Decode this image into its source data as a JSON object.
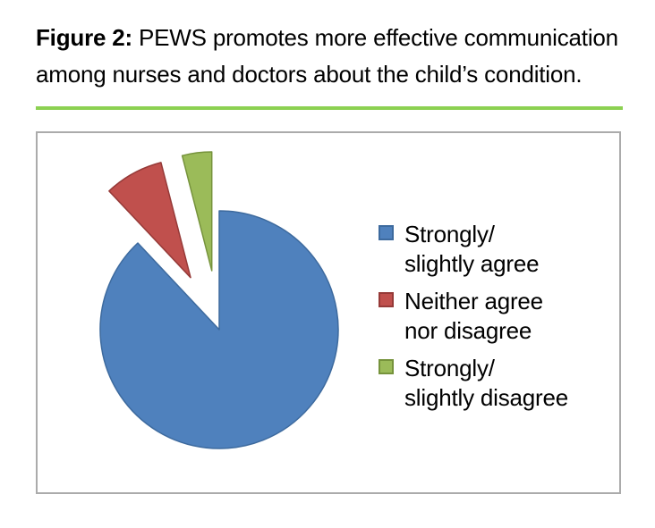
{
  "figure": {
    "caption": {
      "prefix": "Figure 2:",
      "line1_rest": " PEWS promotes more effective communication",
      "line2": "among nurses and doctors about the child’s condition."
    }
  },
  "colors": {
    "separator_green": "#8CD152",
    "frame_border": "#ABABAB",
    "background": "#FFFFFF"
  },
  "chart_data": {
    "type": "pie",
    "title": "Figure 2: PEWS promotes more effective communication among nurses and doctors about the child’s condition.",
    "legend_position": "right",
    "data_labels": false,
    "start_angle_clockwise_from_top_deg": 0,
    "explode_distance_ratio": 0.5,
    "slices": [
      {
        "label": "Strongly/ slightly agree",
        "label_lines": [
          "Strongly/",
          "slightly agree"
        ],
        "value_percent": 88,
        "color": "#4F81BD",
        "edge_color": "#3D6A9E",
        "exploded": false
      },
      {
        "label": "Neither agree nor disagree",
        "label_lines": [
          "Neither agree",
          "nor disagree"
        ],
        "value_percent": 8,
        "color": "#C0504D",
        "edge_color": "#963A38",
        "exploded": true
      },
      {
        "label": "Strongly/ slightly disagree",
        "label_lines": [
          "Strongly/",
          "slightly disagree"
        ],
        "value_percent": 4,
        "color": "#9BBB59",
        "edge_color": "#76933C",
        "exploded": true
      }
    ]
  }
}
